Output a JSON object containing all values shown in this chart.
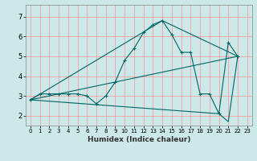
{
  "xlabel": "Humidex (Indice chaleur)",
  "bg_color": "#cce8e8",
  "grid_color": "#f5a0a0",
  "line_color": "#006666",
  "xlim": [
    -0.5,
    23.5
  ],
  "ylim": [
    1.5,
    7.6
  ],
  "xticks": [
    0,
    1,
    2,
    3,
    4,
    5,
    6,
    7,
    8,
    9,
    10,
    11,
    12,
    13,
    14,
    15,
    16,
    17,
    18,
    19,
    20,
    21,
    22,
    23
  ],
  "yticks": [
    2,
    3,
    4,
    5,
    6,
    7
  ],
  "line1_x": [
    0,
    1,
    2,
    3,
    4,
    5,
    6,
    7,
    8,
    9,
    10,
    11,
    12,
    13,
    14,
    15,
    16,
    17,
    18,
    19,
    20,
    21,
    22
  ],
  "line1_y": [
    2.8,
    3.1,
    3.1,
    3.1,
    3.1,
    3.1,
    3.0,
    2.6,
    3.0,
    3.7,
    4.8,
    5.4,
    6.2,
    6.6,
    6.8,
    6.1,
    5.2,
    5.2,
    3.1,
    3.1,
    2.1,
    5.7,
    5.0
  ],
  "line2_x": [
    0,
    22
  ],
  "line2_y": [
    2.8,
    5.0
  ],
  "line3_x": [
    0,
    14,
    22
  ],
  "line3_y": [
    2.8,
    6.8,
    5.0
  ],
  "line4_x": [
    0,
    20,
    21,
    22
  ],
  "line4_y": [
    2.8,
    2.1,
    1.7,
    5.0
  ]
}
